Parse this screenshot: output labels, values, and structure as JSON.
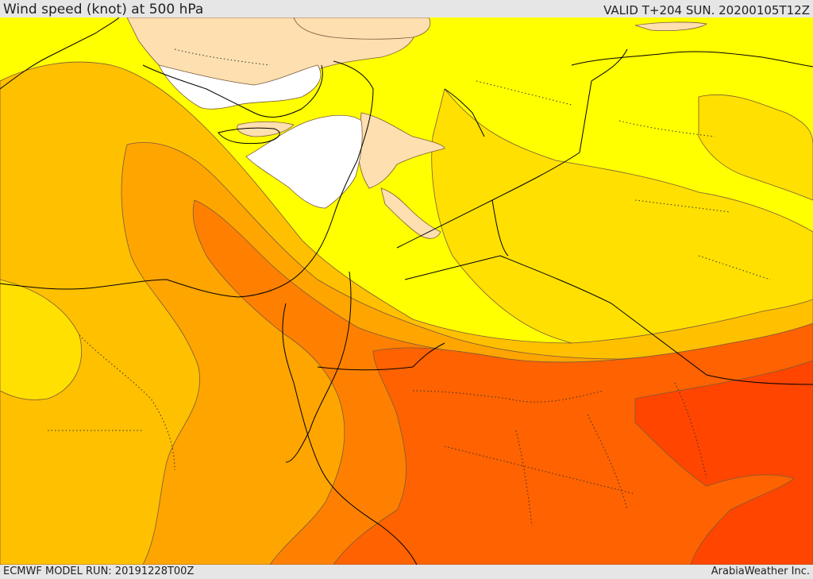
{
  "header": {
    "title": "Wind speed (knot) at 500 hPa",
    "valid": "VALID T+204 SUN. 20200105T12Z"
  },
  "footer": {
    "model_run": "ECMWF MODEL RUN: 20191228T00Z",
    "credit": "ArabiaWeather Inc."
  },
  "map": {
    "fill_colors": {
      "level_1": "#ffffff",
      "level_2": "#fddfb0",
      "level_3": "#ffff00",
      "level_4": "#ffe000",
      "level_5": "#ffc000",
      "level_6": "#ffa500",
      "level_7": "#ff8000",
      "level_8": "#ff6200",
      "level_9": "#ff4500"
    },
    "contour_color": "#7a5a3a",
    "border_color": "#000000"
  }
}
